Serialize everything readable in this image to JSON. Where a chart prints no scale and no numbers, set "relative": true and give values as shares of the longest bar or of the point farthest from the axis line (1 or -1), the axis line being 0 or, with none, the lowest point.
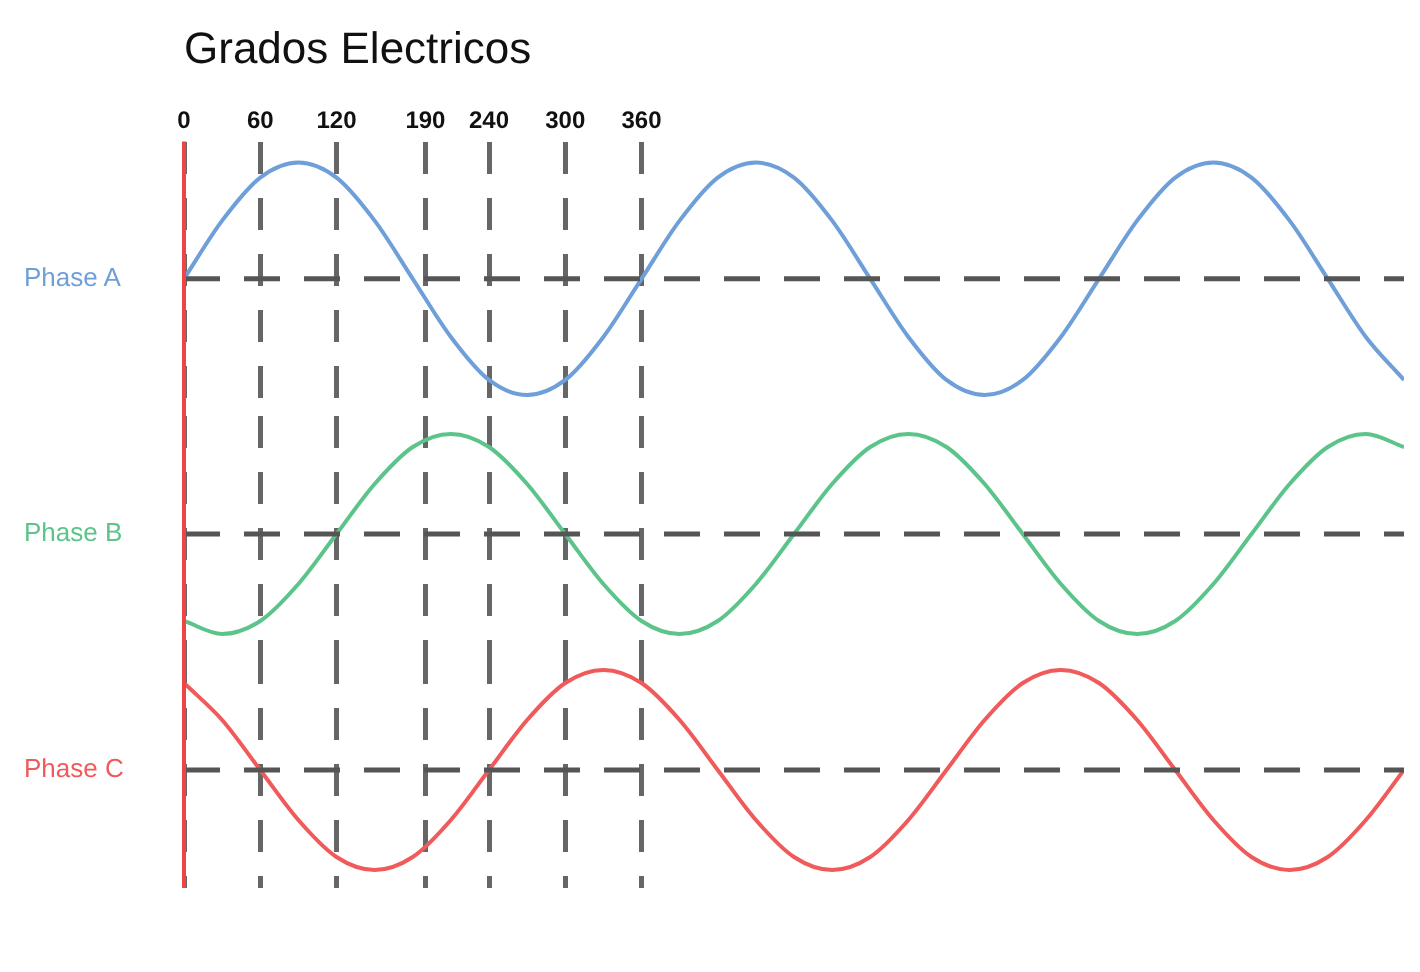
{
  "chart_data": [
    {
      "type": "line",
      "title": "Grados Electricos",
      "relative": true,
      "marker": "none",
      "grid": "x",
      "legend": false,
      "tick_labels": "x",
      "x": [
        0,
        30,
        60,
        90,
        120,
        150,
        180,
        210,
        240,
        270,
        300,
        330,
        360,
        390,
        420,
        450,
        480,
        510,
        540,
        570,
        600,
        630,
        660,
        690,
        720,
        750,
        780,
        810,
        840,
        870,
        900,
        930,
        960
      ],
      "xlim": [
        0,
        960
      ],
      "xticks": [
        0,
        60,
        120,
        190,
        240,
        300,
        360
      ],
      "ref_lines": [
        {
          "axis": "y",
          "value": 0,
          "color": "#555555",
          "line_style": "dashed"
        },
        {
          "axis": "x",
          "value": 0,
          "color": "#ee4444",
          "line_style": "solid"
        }
      ],
      "series": [
        {
          "name": "Phase A",
          "color": "#6f9fd8",
          "values": [
            0,
            0.5,
            0.87,
            1,
            0.87,
            0.5,
            0,
            -0.5,
            -0.87,
            -1,
            -0.87,
            -0.5,
            0,
            0.5,
            0.87,
            1,
            0.87,
            0.5,
            0,
            -0.5,
            -0.87,
            -1,
            -0.87,
            -0.5,
            0,
            0.5,
            0.87,
            1,
            0.87,
            0.5,
            0,
            -0.5,
            -0.87
          ]
        }
      ]
    },
    {
      "type": "line",
      "relative": true,
      "marker": "none",
      "grid": "x",
      "legend": false,
      "tick_labels": false,
      "x": [
        0,
        30,
        60,
        90,
        120,
        150,
        180,
        210,
        240,
        270,
        300,
        330,
        360,
        390,
        420,
        450,
        480,
        510,
        540,
        570,
        600,
        630,
        660,
        690,
        720,
        750,
        780,
        810,
        840,
        870,
        900,
        930,
        960
      ],
      "xlim": [
        0,
        960
      ],
      "xticks": [
        0,
        60,
        120,
        190,
        240,
        300,
        360
      ],
      "ref_lines": [
        {
          "axis": "y",
          "value": 0,
          "color": "#555555",
          "line_style": "dashed"
        },
        {
          "axis": "x",
          "value": 0,
          "color": "#ee4444",
          "line_style": "solid"
        }
      ],
      "series": [
        {
          "name": "Phase B",
          "color": "#5cc48a",
          "values": [
            -0.87,
            -1,
            -0.87,
            -0.5,
            0,
            0.5,
            0.87,
            1,
            0.87,
            0.5,
            0,
            -0.5,
            -0.87,
            -1,
            -0.87,
            -0.5,
            0,
            0.5,
            0.87,
            1,
            0.87,
            0.5,
            0,
            -0.5,
            -0.87,
            -1,
            -0.87,
            -0.5,
            0,
            0.5,
            0.87,
            1,
            0.87
          ]
        }
      ]
    },
    {
      "type": "line",
      "relative": true,
      "marker": "none",
      "grid": "x",
      "legend": false,
      "tick_labels": false,
      "x": [
        0,
        30,
        60,
        90,
        120,
        150,
        180,
        210,
        240,
        270,
        300,
        330,
        360,
        390,
        420,
        450,
        480,
        510,
        540,
        570,
        600,
        630,
        660,
        690,
        720,
        750,
        780,
        810,
        840,
        870,
        900,
        930,
        960
      ],
      "xlim": [
        0,
        960
      ],
      "xticks": [
        0,
        60,
        120,
        190,
        240,
        300,
        360
      ],
      "ref_lines": [
        {
          "axis": "y",
          "value": 0,
          "color": "#555555",
          "line_style": "dashed"
        },
        {
          "axis": "x",
          "value": 0,
          "color": "#ee4444",
          "line_style": "solid"
        }
      ],
      "series": [
        {
          "name": "Phase C",
          "color": "#f05a5a",
          "values": [
            0.87,
            0.5,
            0,
            -0.5,
            -0.87,
            -1,
            -0.87,
            -0.5,
            0,
            0.5,
            0.87,
            1,
            0.87,
            0.5,
            0,
            -0.5,
            -0.87,
            -1,
            -0.87,
            -0.5,
            0,
            0.5,
            0.87,
            1,
            0.87,
            0.5,
            0,
            -0.5,
            -0.87,
            -1,
            -0.87,
            -0.5,
            0
          ]
        }
      ]
    }
  ]
}
